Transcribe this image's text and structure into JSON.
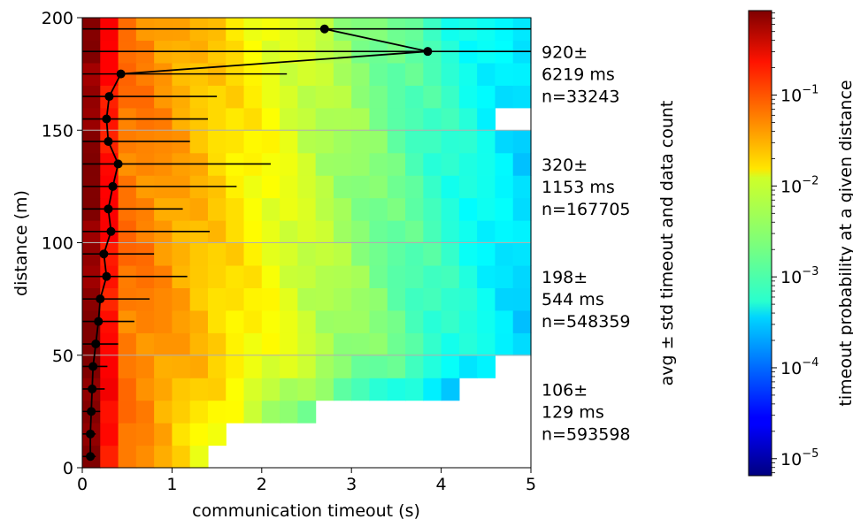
{
  "chart_data": {
    "type": "heatmap",
    "xlabel": "communication timeout (s)",
    "ylabel": "distance (m)",
    "xlim": [
      0,
      5
    ],
    "ylim": [
      0,
      200
    ],
    "x_ticks": [
      "0",
      "1",
      "2",
      "3",
      "4",
      "5"
    ],
    "y_ticks": [
      "0",
      "50",
      "100",
      "150",
      "200"
    ],
    "grid": "horizontal",
    "heatmap": {
      "x_bin_width_s": 0.2,
      "y_bin_height_m": 10,
      "scale": "log",
      "colormap": "jet",
      "max_timeout_by_distance_bin": [
        1.4,
        1.6,
        2.6,
        4.2,
        4.6,
        5.0,
        5.0,
        5.0,
        5.0,
        5.0,
        5.0,
        5.0,
        5.0,
        5.0,
        5.0,
        4.6,
        5.0,
        5.0,
        5.0,
        5.0
      ]
    },
    "mean_profile": {
      "style": "black line with markers and horizontal std bars",
      "points": [
        {
          "distance": 5,
          "mean": 0.09,
          "std_right": 0.15
        },
        {
          "distance": 15,
          "mean": 0.09,
          "std_right": 0.15
        },
        {
          "distance": 25,
          "mean": 0.1,
          "std_right": 0.2
        },
        {
          "distance": 35,
          "mean": 0.11,
          "std_right": 0.25
        },
        {
          "distance": 45,
          "mean": 0.12,
          "std_right": 0.28
        },
        {
          "distance": 55,
          "mean": 0.15,
          "std_right": 0.4
        },
        {
          "distance": 65,
          "mean": 0.18,
          "std_right": 0.58
        },
        {
          "distance": 75,
          "mean": 0.2,
          "std_right": 0.75
        },
        {
          "distance": 85,
          "mean": 0.27,
          "std_right": 1.17
        },
        {
          "distance": 95,
          "mean": 0.24,
          "std_right": 0.8
        },
        {
          "distance": 105,
          "mean": 0.32,
          "std_right": 1.42
        },
        {
          "distance": 115,
          "mean": 0.29,
          "std_right": 1.12
        },
        {
          "distance": 125,
          "mean": 0.34,
          "std_right": 1.72
        },
        {
          "distance": 135,
          "mean": 0.4,
          "std_right": 2.1
        },
        {
          "distance": 145,
          "mean": 0.29,
          "std_right": 1.2
        },
        {
          "distance": 155,
          "mean": 0.27,
          "std_right": 1.4
        },
        {
          "distance": 165,
          "mean": 0.3,
          "std_right": 1.5
        },
        {
          "distance": 175,
          "mean": 0.43,
          "std_right": 2.28
        },
        {
          "distance": 185,
          "mean": 3.85,
          "std_right": 5.0
        },
        {
          "distance": 195,
          "mean": 2.7,
          "std_right": 5.0
        }
      ]
    },
    "right_axis": {
      "label": "avg ± std timeout and data count",
      "groups": [
        {
          "center_m": 175,
          "lines": [
            "920±",
            "6219 ms",
            "n=33243"
          ]
        },
        {
          "center_m": 125,
          "lines": [
            "320±",
            "1153 ms",
            "n=167705"
          ]
        },
        {
          "center_m": 75,
          "lines": [
            "198±",
            "544 ms",
            "n=548359"
          ]
        },
        {
          "center_m": 25,
          "lines": [
            "106±",
            "129 ms",
            "n=593598"
          ]
        }
      ]
    },
    "colorbar": {
      "label": "timeout probability at a given distance",
      "scale": "log",
      "range": [
        6.5e-06,
        0.85
      ],
      "ticks": [
        {
          "value": 0.1,
          "base": "10",
          "exp": "−1"
        },
        {
          "value": 0.01,
          "base": "10",
          "exp": "−2"
        },
        {
          "value": 0.001,
          "base": "10",
          "exp": "−3"
        },
        {
          "value": 0.0001,
          "base": "10",
          "exp": "−4"
        },
        {
          "value": 1e-05,
          "base": "10",
          "exp": "−5"
        }
      ]
    }
  }
}
